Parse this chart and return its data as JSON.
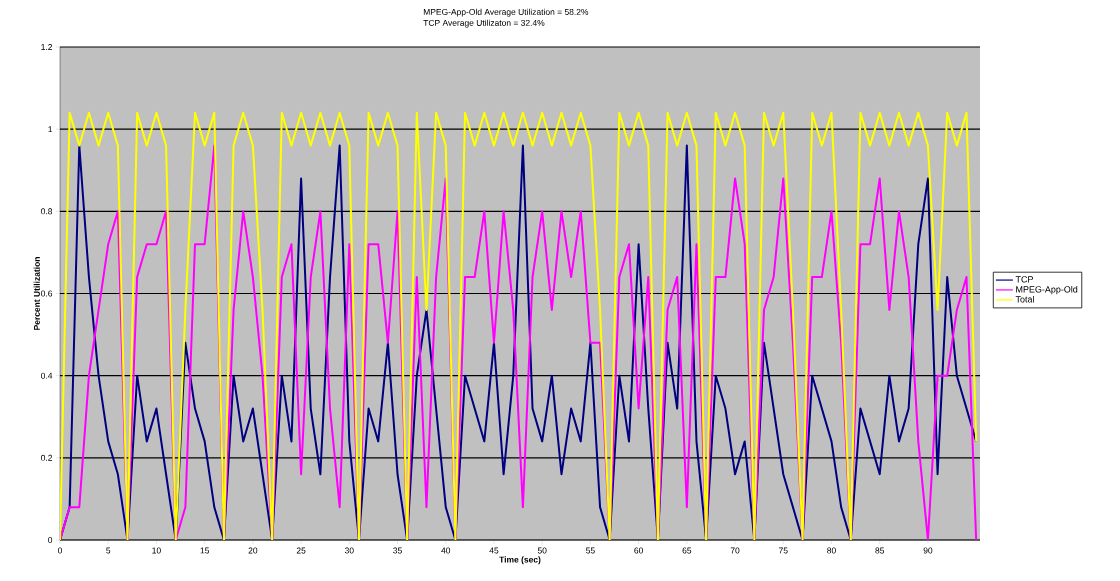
{
  "chart_data": {
    "type": "line",
    "annotations": [
      "MPEG-App-Old Average Utilization = 58.2%",
      "TCP Average Utilizaton                  = 32.4%"
    ],
    "xlabel": "Time (sec)",
    "ylabel": "Percent Utilization",
    "x": [
      0,
      1,
      2,
      3,
      4,
      5,
      6,
      7,
      8,
      9,
      10,
      11,
      12,
      13,
      14,
      15,
      16,
      17,
      18,
      19,
      20,
      21,
      22,
      23,
      24,
      25,
      26,
      27,
      28,
      29,
      30,
      31,
      32,
      33,
      34,
      35,
      36,
      37,
      38,
      39,
      40,
      41,
      42,
      43,
      44,
      45,
      46,
      47,
      48,
      49,
      50,
      51,
      52,
      53,
      54,
      55,
      56,
      57,
      58,
      59,
      60,
      61,
      62,
      63,
      64,
      65,
      66,
      67,
      68,
      69,
      70,
      71,
      72,
      73,
      74,
      75,
      76,
      77,
      78,
      79,
      80,
      81,
      82,
      83,
      84,
      85,
      86,
      87,
      88,
      89,
      90,
      91,
      92,
      93,
      94,
      95
    ],
    "series": [
      {
        "name": "TCP",
        "color": "#000080",
        "values": [
          0,
          0.08,
          0.96,
          0.64,
          0.4,
          0.24,
          0.16,
          0,
          0.4,
          0.24,
          0.32,
          0.16,
          0,
          0.48,
          0.32,
          0.24,
          0.08,
          0,
          0.4,
          0.24,
          0.32,
          0.16,
          0,
          0.4,
          0.24,
          0.88,
          0.32,
          0.16,
          0.64,
          0.96,
          0.24,
          0,
          0.32,
          0.24,
          0.48,
          0.16,
          0,
          0.4,
          0.56,
          0.32,
          0.08,
          0,
          0.4,
          0.32,
          0.24,
          0.48,
          0.16,
          0.4,
          0.96,
          0.32,
          0.24,
          0.4,
          0.16,
          0.32,
          0.24,
          0.48,
          0.08,
          0,
          0.4,
          0.24,
          0.72,
          0.32,
          0,
          0.48,
          0.32,
          0.96,
          0.24,
          0,
          0.4,
          0.32,
          0.16,
          0.24,
          0,
          0.48,
          0.32,
          0.16,
          0.08,
          0,
          0.4,
          0.32,
          0.24,
          0.08,
          0,
          0.32,
          0.24,
          0.16,
          0.4,
          0.24,
          0.32,
          0.72,
          0.88,
          0.16,
          0.64,
          0.4,
          0.32,
          0.24
        ]
      },
      {
        "name": "MPEG-App-Old",
        "color": "#ff00ff",
        "values": [
          0,
          0.08,
          0.08,
          0.4,
          0.56,
          0.72,
          0.8,
          0,
          0.64,
          0.72,
          0.72,
          0.8,
          0,
          0.08,
          0.72,
          0.72,
          0.96,
          0,
          0.56,
          0.8,
          0.64,
          0.4,
          0,
          0.64,
          0.72,
          0.16,
          0.64,
          0.8,
          0.32,
          0.08,
          0.72,
          0,
          0.72,
          0.72,
          0.48,
          0.8,
          0,
          0.64,
          0.08,
          0.64,
          0.88,
          0,
          0.64,
          0.64,
          0.8,
          0.48,
          0.8,
          0.56,
          0.08,
          0.64,
          0.8,
          0.56,
          0.8,
          0.64,
          0.8,
          0.48,
          0.48,
          0,
          0.64,
          0.72,
          0.32,
          0.64,
          0,
          0.56,
          0.64,
          0.08,
          0.72,
          0,
          0.64,
          0.64,
          0.88,
          0.72,
          0,
          0.56,
          0.64,
          0.88,
          0.48,
          0,
          0.64,
          0.64,
          0.8,
          0.48,
          0,
          0.72,
          0.72,
          0.88,
          0.56,
          0.8,
          0.64,
          0.24,
          0,
          0.4,
          0.4,
          0.56,
          0.64,
          0
        ]
      },
      {
        "name": "Total",
        "color": "#ffff00",
        "values": [
          0,
          1.04,
          0.96,
          1.04,
          0.96,
          1.04,
          0.96,
          0,
          1.04,
          0.96,
          1.04,
          0.96,
          0,
          0.56,
          1.04,
          0.96,
          1.04,
          0,
          0.96,
          1.04,
          0.96,
          0.56,
          0,
          1.04,
          0.96,
          1.04,
          0.96,
          1.04,
          0.96,
          1.04,
          0.96,
          0,
          1.04,
          0.96,
          1.04,
          0.96,
          0,
          1.04,
          0.56,
          1.04,
          0.96,
          0,
          1.04,
          0.96,
          1.04,
          0.96,
          1.04,
          0.96,
          1.04,
          0.96,
          1.04,
          0.96,
          1.04,
          0.96,
          1.04,
          0.96,
          0.56,
          0,
          1.04,
          0.96,
          1.04,
          0.96,
          0,
          1.04,
          0.96,
          1.04,
          0.96,
          0,
          1.04,
          0.96,
          1.04,
          0.96,
          0,
          1.04,
          0.96,
          1.04,
          0.56,
          0,
          1.04,
          0.96,
          1.04,
          0.56,
          0,
          1.04,
          0.96,
          1.04,
          0.96,
          1.04,
          0.96,
          1.04,
          0.96,
          0.56,
          1.04,
          0.96,
          1.04,
          0.24
        ]
      }
    ],
    "xlim": [
      0,
      95.4
    ],
    "ylim": [
      0,
      1.2
    ],
    "xticks": [
      0,
      5,
      10,
      15,
      20,
      25,
      30,
      35,
      40,
      45,
      50,
      55,
      60,
      65,
      70,
      75,
      80,
      85,
      90
    ],
    "yticks": [
      0,
      0.2,
      0.4,
      0.6,
      0.8,
      1,
      1.2
    ],
    "grid": "y",
    "legend": "right",
    "marker": "none",
    "line_style": "solid"
  }
}
